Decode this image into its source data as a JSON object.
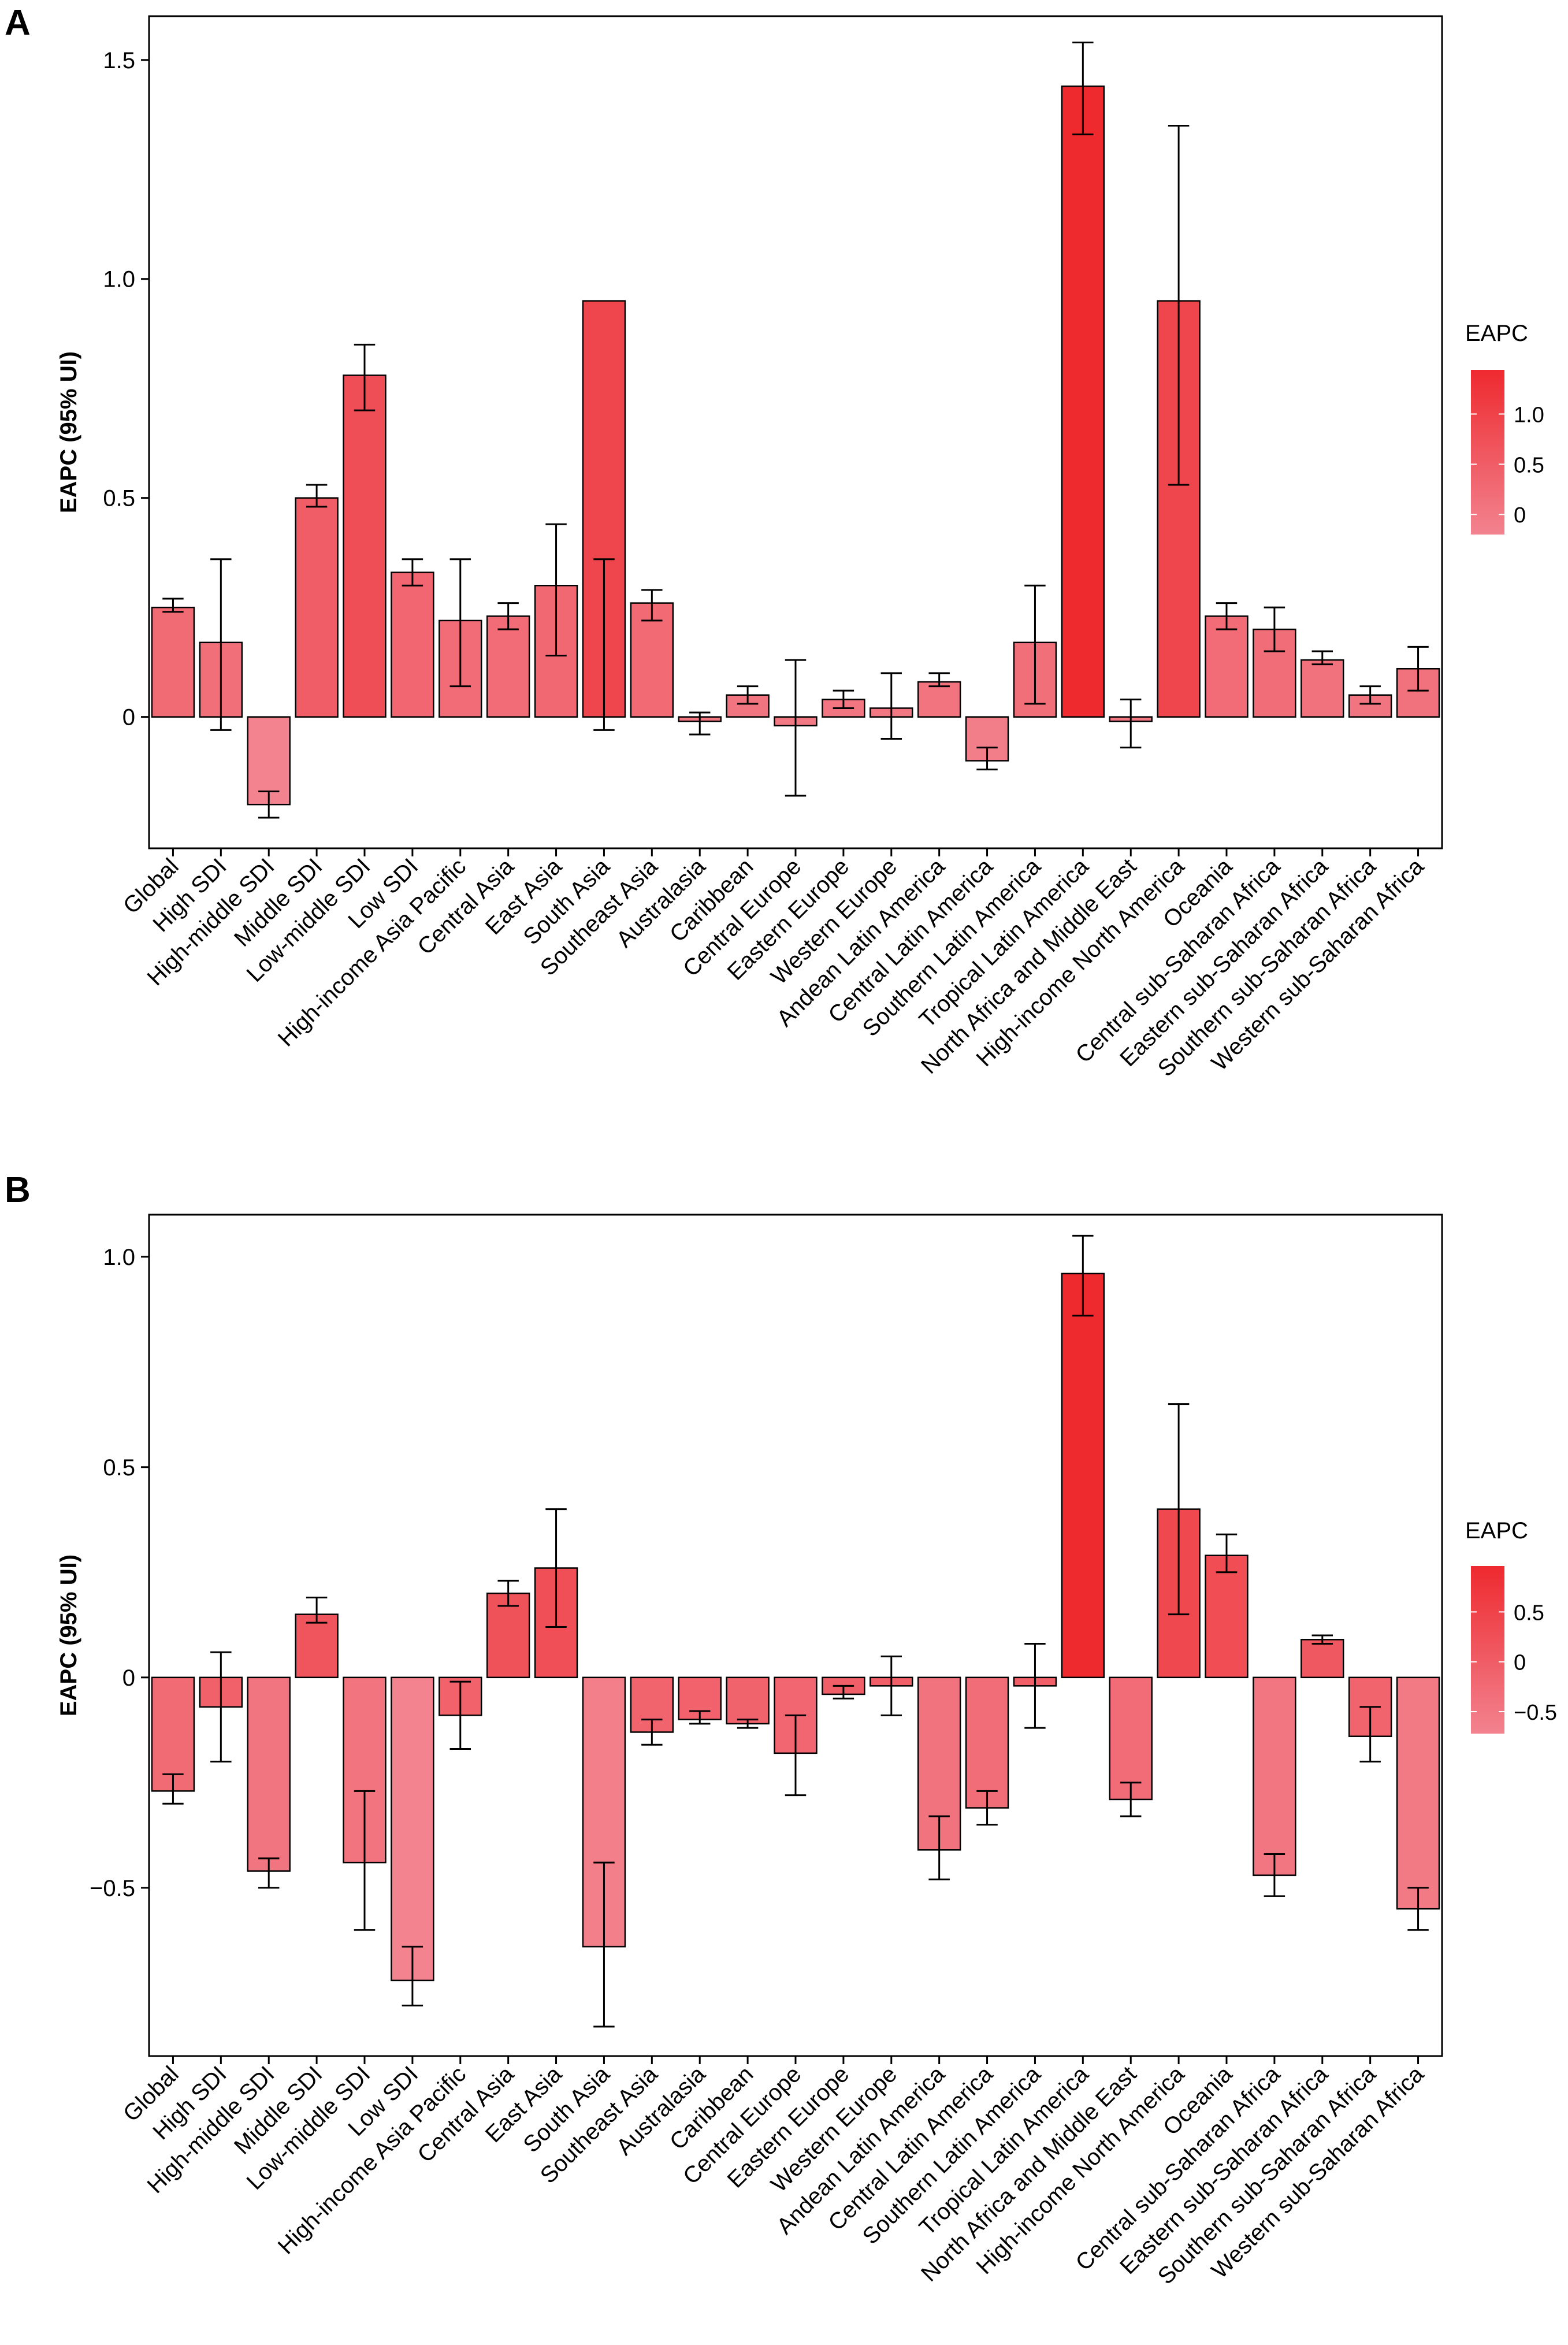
{
  "chart_data": [
    {
      "type": "bar",
      "panel_label": "A",
      "title": "",
      "xlabel": "",
      "ylabel": "EAPC (95% UI)",
      "ylim": [
        -0.3,
        1.6
      ],
      "yticks": [
        0,
        0.5,
        1.0,
        1.5
      ],
      "ytick_labels": [
        "0",
        "0.5",
        "1.0",
        "1.5"
      ],
      "grid": false,
      "legend": {
        "title": "EAPC",
        "placement": "right",
        "type": "colorbar",
        "min": -0.2,
        "max": 1.44,
        "ticks": [
          0,
          0.5,
          1.0
        ],
        "tick_labels": [
          "0",
          "0.5",
          "1.0"
        ],
        "color_low": "#f2838f",
        "color_high": "#ee2a2f"
      },
      "categories": [
        "Global",
        "High SDI",
        "High-middle SDI",
        "Middle SDI",
        "Low-middle SDI",
        "Low SDI",
        "High-income Asia Pacific",
        "Central Asia",
        "East Asia",
        "South Asia",
        "Southeast Asia",
        "Australasia",
        "Caribbean",
        "Central Europe",
        "Eastern Europe",
        "Western Europe",
        "Andean Latin America",
        "Central Latin America",
        "Southern Latin America",
        "Tropical Latin America",
        "North Africa and Middle East",
        "High-income North America",
        "Oceania",
        "Central sub-Saharan Africa",
        "Eastern sub-Saharan Africa",
        "Southern sub-Saharan Africa",
        "Western sub-Saharan Africa"
      ],
      "values": [
        0.25,
        0.17,
        -0.2,
        0.5,
        0.78,
        0.33,
        0.22,
        0.23,
        0.3,
        0.95,
        0.26,
        -0.01,
        0.05,
        -0.02,
        0.04,
        0.02,
        0.08,
        -0.1,
        0.17,
        1.44,
        -0.01,
        0.95,
        0.23,
        0.2,
        0.13,
        0.05,
        0.11
      ],
      "lower": [
        0.24,
        -0.03,
        -0.23,
        0.48,
        0.7,
        0.3,
        0.07,
        0.2,
        0.14,
        -0.03,
        0.22,
        -0.04,
        0.03,
        -0.18,
        0.02,
        -0.05,
        0.07,
        -0.12,
        0.03,
        1.33,
        -0.07,
        0.53,
        0.2,
        0.15,
        0.12,
        0.03,
        0.06
      ],
      "upper": [
        0.27,
        0.36,
        -0.17,
        0.53,
        0.85,
        0.36,
        0.36,
        0.26,
        0.44,
        0.36,
        0.29,
        0.01,
        0.07,
        0.13,
        0.06,
        0.1,
        0.1,
        -0.07,
        0.3,
        1.54,
        0.04,
        1.35,
        0.26,
        0.25,
        0.15,
        0.07,
        0.16
      ]
    },
    {
      "type": "bar",
      "panel_label": "B",
      "title": "",
      "xlabel": "",
      "ylabel": "EAPC (95% UI)",
      "ylim": [
        -0.9,
        1.1
      ],
      "yticks": [
        -0.5,
        0,
        0.5,
        1.0
      ],
      "ytick_labels": [
        "−0.5",
        "0",
        "0.5",
        "1.0"
      ],
      "grid": false,
      "legend": {
        "title": "EAPC",
        "placement": "right",
        "type": "colorbar",
        "min": -0.72,
        "max": 0.96,
        "ticks": [
          -0.5,
          0,
          0.5
        ],
        "tick_labels": [
          "−0.5",
          "0",
          "0.5"
        ],
        "color_low": "#f2838f",
        "color_high": "#ee2a2f"
      },
      "categories": [
        "Global",
        "High SDI",
        "High-middle SDI",
        "Middle SDI",
        "Low-middle SDI",
        "Low SDI",
        "High-income Asia Pacific",
        "Central Asia",
        "East Asia",
        "South Asia",
        "Southeast Asia",
        "Australasia",
        "Caribbean",
        "Central Europe",
        "Eastern Europe",
        "Western Europe",
        "Andean Latin America",
        "Central Latin America",
        "Southern Latin America",
        "Tropical Latin America",
        "North Africa and Middle East",
        "High-income North America",
        "Oceania",
        "Central sub-Saharan Africa",
        "Eastern sub-Saharan Africa",
        "Southern sub-Saharan Africa",
        "Western sub-Saharan Africa"
      ],
      "values": [
        -0.27,
        -0.07,
        -0.46,
        0.15,
        -0.44,
        -0.72,
        -0.09,
        0.2,
        0.26,
        -0.64,
        -0.13,
        -0.1,
        -0.11,
        -0.18,
        -0.04,
        -0.02,
        -0.41,
        -0.31,
        -0.02,
        0.96,
        -0.29,
        0.4,
        0.29,
        -0.47,
        0.09,
        -0.14,
        -0.55
      ],
      "lower": [
        -0.3,
        -0.2,
        -0.5,
        0.13,
        -0.6,
        -0.78,
        -0.17,
        0.17,
        0.12,
        -0.83,
        -0.16,
        -0.11,
        -0.12,
        -0.28,
        -0.05,
        -0.09,
        -0.48,
        -0.35,
        -0.12,
        0.86,
        -0.33,
        0.15,
        0.25,
        -0.52,
        0.08,
        -0.2,
        -0.6
      ],
      "upper": [
        -0.23,
        0.06,
        -0.43,
        0.19,
        -0.27,
        -0.64,
        -0.01,
        0.23,
        0.4,
        -0.44,
        -0.1,
        -0.08,
        -0.1,
        -0.09,
        -0.02,
        0.05,
        -0.33,
        -0.27,
        0.08,
        1.05,
        -0.25,
        0.65,
        0.34,
        -0.42,
        0.1,
        -0.07,
        -0.5
      ]
    }
  ]
}
